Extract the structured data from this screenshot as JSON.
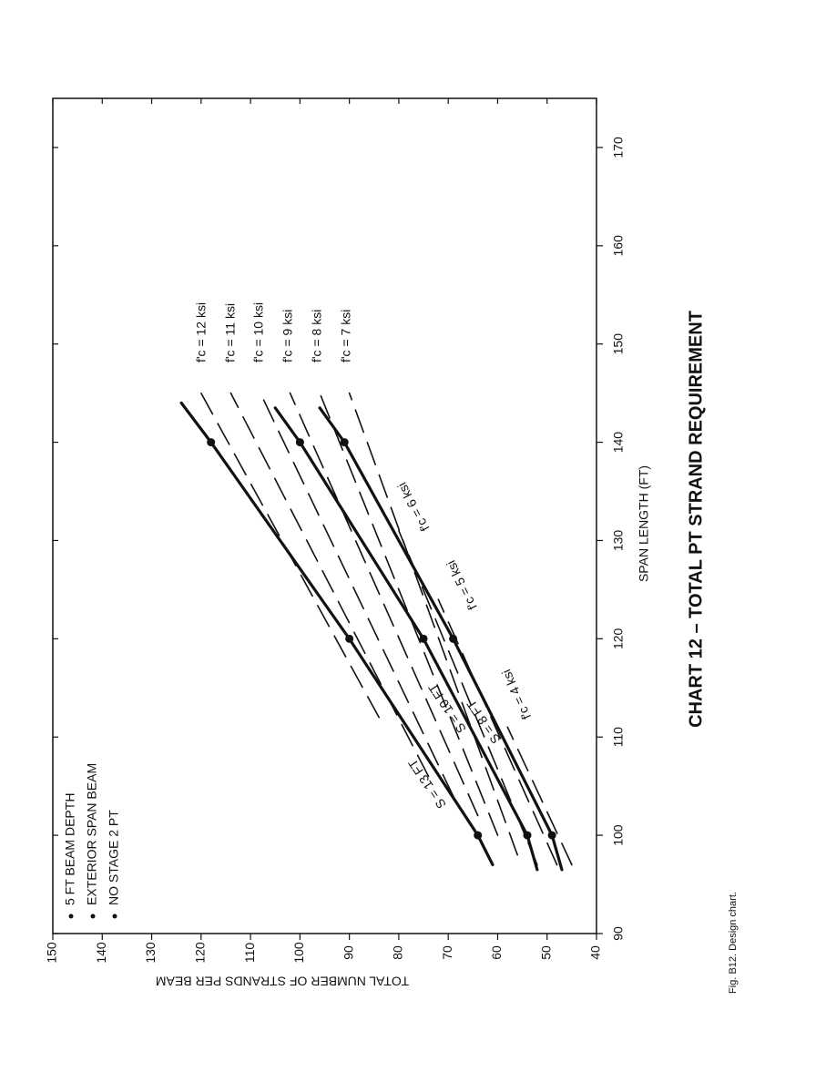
{
  "chart_data": {
    "type": "line",
    "title": "CHART 12 – TOTAL PT STRAND REQUIREMENT",
    "x_label": "SPAN LENGTH (FT)",
    "y_label": "TOTAL NUMBER OF STRANDS PER BEAM",
    "caption": "Fig. B12. Design chart.",
    "notes": [
      "5 FT BEAM DEPTH",
      "EXTERIOR SPAN BEAM",
      "NO STAGE 2 PT"
    ],
    "xlim": [
      90,
      175
    ],
    "xticks": [
      90,
      100,
      110,
      120,
      130,
      140,
      150,
      160,
      170
    ],
    "ylim": [
      40,
      150
    ],
    "yticks": [
      40,
      50,
      60,
      70,
      80,
      90,
      100,
      110,
      120,
      130,
      140,
      150
    ],
    "rotated": true,
    "series": [
      {
        "name": "S = 13 FT",
        "color": "#111111",
        "dashed": false,
        "x": [
          97,
          100,
          120,
          140,
          144
        ],
        "values": [
          61,
          64,
          90,
          118,
          124
        ]
      },
      {
        "name": "S = 10 FT",
        "color": "#111111",
        "dashed": false,
        "x": [
          96.5,
          100,
          120,
          140,
          143.5
        ],
        "values": [
          52,
          54,
          75,
          100,
          105
        ]
      },
      {
        "name": "S = 8 FT",
        "color": "#111111",
        "dashed": false,
        "x": [
          96.5,
          100,
          120,
          140,
          143.5
        ],
        "values": [
          47,
          49,
          69,
          91,
          96
        ]
      },
      {
        "name": "f'c = 12 ksi",
        "color": "#111111",
        "dashed": true,
        "x": [
          112,
          145
        ],
        "values": [
          84,
          120
        ]
      },
      {
        "name": "f'c = 11 ksi",
        "color": "#111111",
        "dashed": true,
        "x": [
          106,
          145
        ],
        "values": [
          74,
          114
        ]
      },
      {
        "name": "f'c = 10 ksi",
        "color": "#111111",
        "dashed": true,
        "x": [
          104,
          145
        ],
        "values": [
          69,
          108
        ]
      },
      {
        "name": "f'c = 9 ksi",
        "color": "#111111",
        "dashed": true,
        "x": [
          102,
          145
        ],
        "values": [
          64,
          102
        ]
      },
      {
        "name": "f'c = 8 ksi",
        "color": "#111111",
        "dashed": true,
        "x": [
          100,
          145
        ],
        "values": [
          60,
          96
        ]
      },
      {
        "name": "f'c = 7 ksi",
        "color": "#111111",
        "dashed": true,
        "x": [
          98,
          145
        ],
        "values": [
          56,
          90
        ]
      },
      {
        "name": "f'c = 6 ksi",
        "color": "#111111",
        "dashed": true,
        "x": [
          97,
          131
        ],
        "values": [
          52,
          80
        ]
      },
      {
        "name": "f'c = 5 ksi",
        "color": "#111111",
        "dashed": true,
        "x": [
          97,
          124
        ],
        "values": [
          48,
          72
        ]
      },
      {
        "name": "f'c = 4 ksi",
        "color": "#111111",
        "dashed": true,
        "x": [
          97,
          111
        ],
        "values": [
          45,
          58
        ]
      }
    ]
  }
}
